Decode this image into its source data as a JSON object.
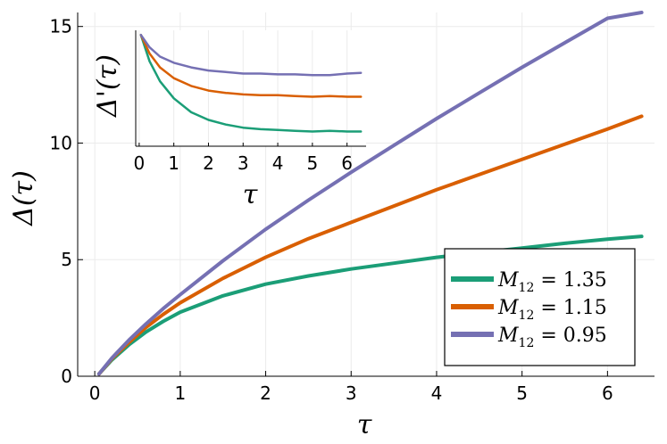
{
  "chart_data": [
    {
      "type": "line",
      "xlabel": "τ",
      "ylabel": "Δ(τ)",
      "xlim": [
        -0.2,
        6.55
      ],
      "ylim": [
        0,
        15.6
      ],
      "xticks": [
        0,
        1,
        2,
        3,
        4,
        5,
        6
      ],
      "yticks": [
        0,
        5,
        10,
        15
      ],
      "grid": true,
      "legend_position": "bottom-right",
      "series": [
        {
          "name": "M_12 = 1.35",
          "label_main": "M",
          "label_sub": "12",
          "label_rest": " = 1.35",
          "color": "#1b9e77",
          "x": [
            0.05,
            0.2,
            0.4,
            0.6,
            0.8,
            1.0,
            1.5,
            2.0,
            2.5,
            3.0,
            3.5,
            4.0,
            4.5,
            5.0,
            5.5,
            6.0,
            6.4
          ],
          "y": [
            0.1,
            0.7,
            1.35,
            1.9,
            2.35,
            2.75,
            3.45,
            3.95,
            4.3,
            4.6,
            4.85,
            5.1,
            5.3,
            5.5,
            5.7,
            5.88,
            6.0
          ]
        },
        {
          "name": "M_12 = 1.15",
          "label_main": "M",
          "label_sub": "12",
          "label_rest": " = 1.15",
          "color": "#d95f02",
          "x": [
            0.05,
            0.2,
            0.4,
            0.6,
            0.8,
            1.0,
            1.5,
            2.0,
            2.5,
            3.0,
            3.5,
            4.0,
            4.5,
            5.0,
            5.5,
            6.0,
            6.4
          ],
          "y": [
            0.1,
            0.75,
            1.45,
            2.1,
            2.65,
            3.15,
            4.2,
            5.1,
            5.9,
            6.6,
            7.3,
            8.0,
            8.65,
            9.3,
            9.95,
            10.6,
            11.15
          ]
        },
        {
          "name": "M_12 = 0.95",
          "label_main": "M",
          "label_sub": "12",
          "label_rest": " = 0.95",
          "color": "#7570b3",
          "x": [
            0.05,
            0.2,
            0.4,
            0.6,
            0.8,
            1.0,
            1.5,
            2.0,
            2.5,
            3.0,
            3.5,
            4.0,
            4.5,
            5.0,
            5.5,
            6.0,
            6.4
          ],
          "y": [
            0.1,
            0.78,
            1.55,
            2.25,
            2.9,
            3.5,
            4.95,
            6.3,
            7.55,
            8.75,
            9.9,
            11.05,
            12.15,
            13.25,
            14.3,
            15.35,
            16.1
          ]
        }
      ]
    },
    {
      "type": "line",
      "inset": true,
      "xlabel": "τ",
      "ylabel": "Δ'(τ)",
      "ylabel_main": "Δ",
      "ylabel_prime": "'",
      "ylabel_arg": "(τ)",
      "xlim": [
        -0.1,
        6.55
      ],
      "ylim": [
        0.25,
        1.0
      ],
      "xticks": [
        0,
        1,
        2,
        3,
        4,
        5,
        6
      ],
      "yticks": [],
      "grid": true,
      "series": [
        {
          "color": "#1b9e77",
          "x": [
            0.05,
            0.3,
            0.6,
            1.0,
            1.5,
            2.0,
            2.5,
            3.0,
            3.5,
            4.0,
            4.5,
            5.0,
            5.5,
            6.0,
            6.4
          ],
          "y": [
            0.97,
            0.8,
            0.67,
            0.56,
            0.47,
            0.42,
            0.39,
            0.37,
            0.36,
            0.355,
            0.35,
            0.345,
            0.35,
            0.345,
            0.345
          ]
        },
        {
          "color": "#d95f02",
          "x": [
            0.05,
            0.3,
            0.6,
            1.0,
            1.5,
            2.0,
            2.5,
            3.0,
            3.5,
            4.0,
            4.5,
            5.0,
            5.5,
            6.0,
            6.4
          ],
          "y": [
            0.97,
            0.85,
            0.76,
            0.69,
            0.64,
            0.61,
            0.595,
            0.585,
            0.58,
            0.58,
            0.575,
            0.57,
            0.575,
            0.57,
            0.57
          ]
        },
        {
          "color": "#7570b3",
          "x": [
            0.05,
            0.3,
            0.6,
            1.0,
            1.5,
            2.0,
            2.5,
            3.0,
            3.5,
            4.0,
            4.5,
            5.0,
            5.5,
            6.0,
            6.4
          ],
          "y": [
            0.97,
            0.89,
            0.83,
            0.79,
            0.76,
            0.74,
            0.73,
            0.72,
            0.72,
            0.715,
            0.715,
            0.71,
            0.71,
            0.72,
            0.725
          ]
        }
      ]
    }
  ]
}
